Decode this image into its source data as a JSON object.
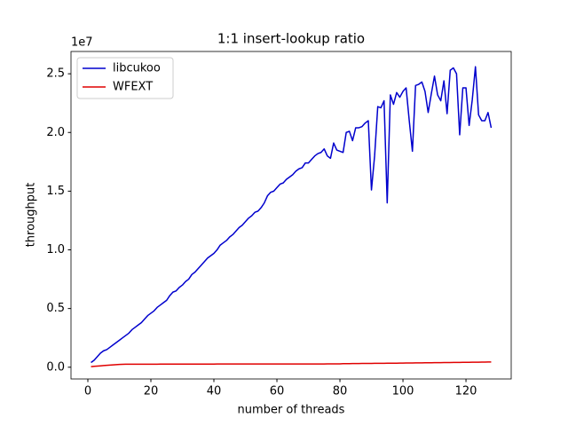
{
  "chart_data": {
    "type": "line",
    "title": "1:1 insert-lookup ratio",
    "x_label": "number of threads",
    "y_label": "throughput",
    "y_offset_label": "1e7",
    "x": [
      1,
      2,
      3,
      4,
      5,
      6,
      7,
      8,
      9,
      10,
      11,
      12,
      13,
      14,
      15,
      16,
      17,
      18,
      19,
      20,
      21,
      22,
      23,
      24,
      25,
      26,
      27,
      28,
      29,
      30,
      31,
      32,
      33,
      34,
      35,
      36,
      37,
      38,
      39,
      40,
      41,
      42,
      43,
      44,
      45,
      46,
      47,
      48,
      49,
      50,
      51,
      52,
      53,
      54,
      55,
      56,
      57,
      58,
      59,
      60,
      61,
      62,
      63,
      64,
      65,
      66,
      67,
      68,
      69,
      70,
      71,
      72,
      73,
      74,
      75,
      76,
      77,
      78,
      79,
      80,
      81,
      82,
      83,
      84,
      85,
      86,
      87,
      88,
      89,
      90,
      91,
      92,
      93,
      94,
      95,
      96,
      97,
      98,
      99,
      100,
      101,
      102,
      103,
      104,
      105,
      106,
      107,
      108,
      109,
      110,
      111,
      112,
      113,
      114,
      115,
      116,
      117,
      118,
      119,
      120,
      121,
      122,
      123,
      124,
      125,
      126,
      127,
      128
    ],
    "series": [
      {
        "name": "libcukoo",
        "color": "#0000cd",
        "values": [
          0.04,
          0.06,
          0.09,
          0.12,
          0.14,
          0.15,
          0.17,
          0.19,
          0.21,
          0.23,
          0.25,
          0.27,
          0.29,
          0.32,
          0.34,
          0.36,
          0.38,
          0.41,
          0.44,
          0.46,
          0.48,
          0.51,
          0.53,
          0.55,
          0.57,
          0.61,
          0.64,
          0.65,
          0.68,
          0.7,
          0.73,
          0.75,
          0.79,
          0.81,
          0.84,
          0.87,
          0.9,
          0.93,
          0.95,
          0.97,
          1.0,
          1.04,
          1.06,
          1.08,
          1.11,
          1.13,
          1.16,
          1.19,
          1.21,
          1.24,
          1.27,
          1.29,
          1.32,
          1.33,
          1.36,
          1.4,
          1.46,
          1.49,
          1.5,
          1.53,
          1.56,
          1.57,
          1.6,
          1.62,
          1.64,
          1.67,
          1.69,
          1.7,
          1.74,
          1.74,
          1.77,
          1.8,
          1.82,
          1.83,
          1.86,
          1.8,
          1.78,
          1.91,
          1.85,
          1.84,
          1.83,
          2.0,
          2.01,
          1.93,
          2.04,
          2.04,
          2.05,
          2.08,
          2.1,
          1.51,
          1.8,
          2.22,
          2.21,
          2.27,
          1.4,
          2.32,
          2.24,
          2.34,
          2.3,
          2.35,
          2.38,
          2.1,
          1.84,
          2.4,
          2.41,
          2.43,
          2.35,
          2.17,
          2.33,
          2.48,
          2.32,
          2.27,
          2.44,
          2.16,
          2.53,
          2.55,
          2.5,
          1.98,
          2.38,
          2.38,
          2.06,
          2.28,
          2.56,
          2.15,
          2.1,
          2.1,
          2.17,
          2.04
        ]
      },
      {
        "name": "WFEXT",
        "color": "#e00000",
        "values": [
          0.005,
          0.008,
          0.01,
          0.012,
          0.014,
          0.016,
          0.018,
          0.02,
          0.022,
          0.024,
          0.025,
          0.026,
          0.026,
          0.026,
          0.026,
          0.026,
          0.026,
          0.026,
          0.026,
          0.026,
          0.026,
          0.026,
          0.027,
          0.027,
          0.027,
          0.027,
          0.027,
          0.027,
          0.027,
          0.027,
          0.027,
          0.027,
          0.027,
          0.027,
          0.027,
          0.027,
          0.027,
          0.027,
          0.027,
          0.027,
          0.028,
          0.028,
          0.028,
          0.028,
          0.028,
          0.028,
          0.028,
          0.028,
          0.028,
          0.028,
          0.028,
          0.028,
          0.028,
          0.028,
          0.028,
          0.028,
          0.028,
          0.028,
          0.028,
          0.028,
          0.028,
          0.028,
          0.028,
          0.028,
          0.028,
          0.028,
          0.028,
          0.028,
          0.028,
          0.028,
          0.028,
          0.028,
          0.028,
          0.028,
          0.028,
          0.029,
          0.029,
          0.029,
          0.029,
          0.029,
          0.03,
          0.03,
          0.03,
          0.031,
          0.031,
          0.031,
          0.032,
          0.032,
          0.032,
          0.032,
          0.033,
          0.033,
          0.033,
          0.033,
          0.034,
          0.034,
          0.034,
          0.034,
          0.035,
          0.035,
          0.036,
          0.036,
          0.036,
          0.037,
          0.037,
          0.037,
          0.038,
          0.038,
          0.038,
          0.039,
          0.039,
          0.039,
          0.04,
          0.04,
          0.04,
          0.041,
          0.041,
          0.041,
          0.042,
          0.042,
          0.042,
          0.043,
          0.043,
          0.043,
          0.044,
          0.044,
          0.045,
          0.045
        ]
      }
    ],
    "xlim": [
      -5.35,
      134.35
    ],
    "ylim": [
      -0.1,
      2.69
    ],
    "xticks": [
      0,
      20,
      40,
      60,
      80,
      100,
      120
    ],
    "yticks": [
      {
        "value": 0,
        "label": "0.0"
      },
      0.5,
      {
        "value": 1,
        "label": "1.0"
      },
      1.5,
      {
        "value": 2,
        "label": "2.0"
      },
      2.5
    ],
    "legend": "upper left"
  }
}
